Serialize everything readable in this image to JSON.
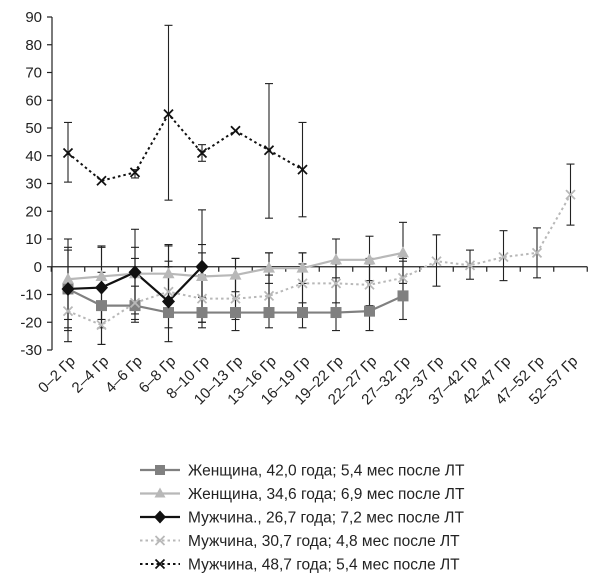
{
  "chart_data": {
    "type": "line",
    "categories": [
      "0–2 Гр",
      "2–4 Гр",
      "4–6 Гр",
      "6–8 Гр",
      "8–10 Гр",
      "10–13 Гр",
      "13–16 Гр",
      "16–19 Гр",
      "19–22 Гр",
      "22–27 Гр",
      "27–32 Гр",
      "32–37 Гр",
      "37–42 Гр",
      "42–47 Гр",
      "47–52 Гр",
      "52–57 Гр"
    ],
    "ylim": [
      -30,
      90
    ],
    "yticks": [
      90,
      80,
      70,
      60,
      50,
      40,
      30,
      20,
      10,
      0,
      -10,
      -20,
      -30
    ],
    "grid": false,
    "legend_position": "bottom",
    "series": [
      {
        "name": "Женщина, 42,0 года; 5,4 мес после ЛТ",
        "color": "#808080",
        "marker": "square",
        "line": "solid",
        "values": [
          -8,
          -14,
          -14,
          -16.5,
          -16.5,
          -16.5,
          -16.5,
          -16.5,
          -16.5,
          -16,
          -10.5,
          null,
          null,
          null,
          null,
          null
        ],
        "err_low": [
          -22,
          -28,
          -20,
          -22,
          -22,
          -23,
          -22,
          -22,
          -23,
          -23,
          -19,
          null,
          null,
          null,
          null,
          null
        ],
        "err_high": [
          6,
          -2,
          3,
          8,
          8,
          3,
          5,
          5,
          2,
          3,
          2,
          null,
          null,
          null,
          null,
          null
        ]
      },
      {
        "name": "Женщина, 34,6 года; 6,9 мес после ЛТ",
        "color": "#b8b8b8",
        "marker": "triangle",
        "line": "solid",
        "values": [
          -4.5,
          -3.5,
          -2.5,
          -2.5,
          -3.5,
          -3,
          -0.5,
          -0.5,
          2.5,
          2.5,
          5,
          null,
          null,
          null,
          null,
          null
        ],
        "err_low": [
          -19,
          -19,
          -13,
          -12,
          -11,
          -9,
          -6,
          -6,
          -4,
          -5,
          -6,
          null,
          null,
          null,
          null,
          null
        ],
        "err_high": [
          10,
          7.5,
          7,
          7.5,
          5,
          3,
          5,
          5,
          10,
          11,
          16,
          null,
          null,
          null,
          null,
          null
        ]
      },
      {
        "name": "Мужчина., 26,7 года; 7,2 мес после ЛТ",
        "color": "#111111",
        "marker": "diamond",
        "line": "solid",
        "values": [
          -8,
          -7.5,
          -2,
          -12.5,
          0,
          null,
          null,
          null,
          null,
          null,
          null,
          null,
          null,
          null,
          null,
          null
        ],
        "err_low": [
          -23,
          -22,
          -17,
          -27,
          -20,
          null,
          null,
          null,
          null,
          null,
          null,
          null,
          null,
          null,
          null,
          null
        ],
        "err_high": [
          7,
          7,
          13.5,
          2,
          20.5,
          null,
          null,
          null,
          null,
          null,
          null,
          null,
          null,
          null,
          null,
          null
        ]
      },
      {
        "name": "Мужчина, 30,7 года; 4,8 мес после ЛТ",
        "color": "#b8b8b8",
        "marker": "x",
        "line": "dotted",
        "values": [
          -16,
          -21,
          -13,
          -9,
          -11.5,
          -11.5,
          -10.5,
          -6,
          -6,
          -6.5,
          -4,
          2,
          0.5,
          3.5,
          5,
          26
        ],
        "err_low": [
          -27,
          -28,
          -19,
          -18,
          -20,
          -19,
          -18,
          -13,
          -13,
          -14,
          -11,
          -7,
          -4.5,
          -5,
          -4,
          15
        ],
        "err_high": [
          -5,
          -14,
          -7,
          0,
          -3,
          -4,
          -3,
          1,
          1,
          1,
          3,
          11.5,
          6,
          13,
          14,
          37
        ]
      },
      {
        "name": "Мужчина, 48,7 года; 5,4 мес после ЛТ",
        "color": "#111111",
        "marker": "x",
        "line": "dotted",
        "values": [
          41,
          31,
          34,
          55,
          41,
          49,
          42,
          35,
          null,
          null,
          null,
          null,
          null,
          null,
          null,
          null
        ],
        "err_low": [
          30.5,
          31,
          32,
          24,
          38,
          49,
          17.5,
          18,
          null,
          null,
          null,
          null,
          null,
          null,
          null,
          null
        ],
        "err_high": [
          52,
          31,
          35,
          87,
          44,
          49,
          66,
          52,
          null,
          null,
          null,
          null,
          null,
          null,
          null,
          null
        ]
      }
    ]
  }
}
